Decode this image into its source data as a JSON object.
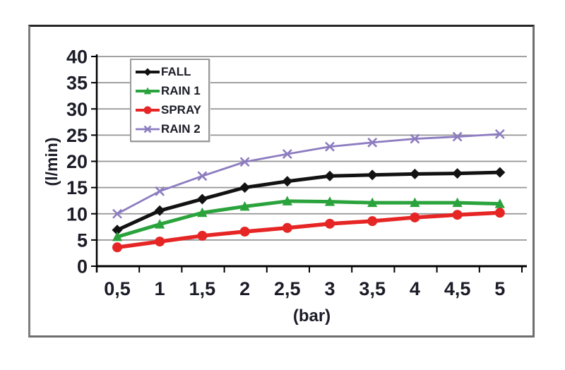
{
  "chart_data": {
    "type": "line",
    "title": "",
    "xlabel": "(bar)",
    "ylabel": "(l/min)",
    "x": [
      0.5,
      1,
      1.5,
      2,
      2.5,
      3,
      3.5,
      4,
      4.5,
      5
    ],
    "x_tick_labels": [
      "0,5",
      "1",
      "1,5",
      "2",
      "2,5",
      "3",
      "3,5",
      "4",
      "4,5",
      "5"
    ],
    "y_tick_labels": [
      "0",
      "5",
      "10",
      "15",
      "20",
      "25",
      "30",
      "35",
      "40"
    ],
    "ylim": [
      0,
      40
    ],
    "ytick_step": 5,
    "grid": true,
    "legend_position": "top-left",
    "series": [
      {
        "name": "FALL",
        "color": "#121212",
        "marker": "diamond",
        "line_width": 5,
        "values": [
          6.9,
          10.6,
          12.8,
          15.0,
          16.2,
          17.2,
          17.4,
          17.6,
          17.7,
          17.9
        ]
      },
      {
        "name": "RAIN 1",
        "color": "#2aa33c",
        "marker": "triangle",
        "line_width": 5,
        "values": [
          5.6,
          8.0,
          10.2,
          11.4,
          12.4,
          12.3,
          12.1,
          12.1,
          12.1,
          11.9
        ]
      },
      {
        "name": "SPRAY",
        "color": "#e62525",
        "marker": "circle",
        "line_width": 5.5,
        "values": [
          3.6,
          4.7,
          5.8,
          6.6,
          7.3,
          8.1,
          8.6,
          9.3,
          9.8,
          10.2
        ]
      },
      {
        "name": "RAIN 2",
        "color": "#8d7cc0",
        "marker": "x",
        "line_width": 2.8,
        "values": [
          10.0,
          14.3,
          17.2,
          19.9,
          21.4,
          22.8,
          23.6,
          24.3,
          24.7,
          25.2
        ]
      }
    ]
  },
  "style": {
    "background": "#ffffff",
    "gridline_color": "#949494",
    "axis_color": "#000000",
    "tick_label_color": "#1c1c28"
  }
}
